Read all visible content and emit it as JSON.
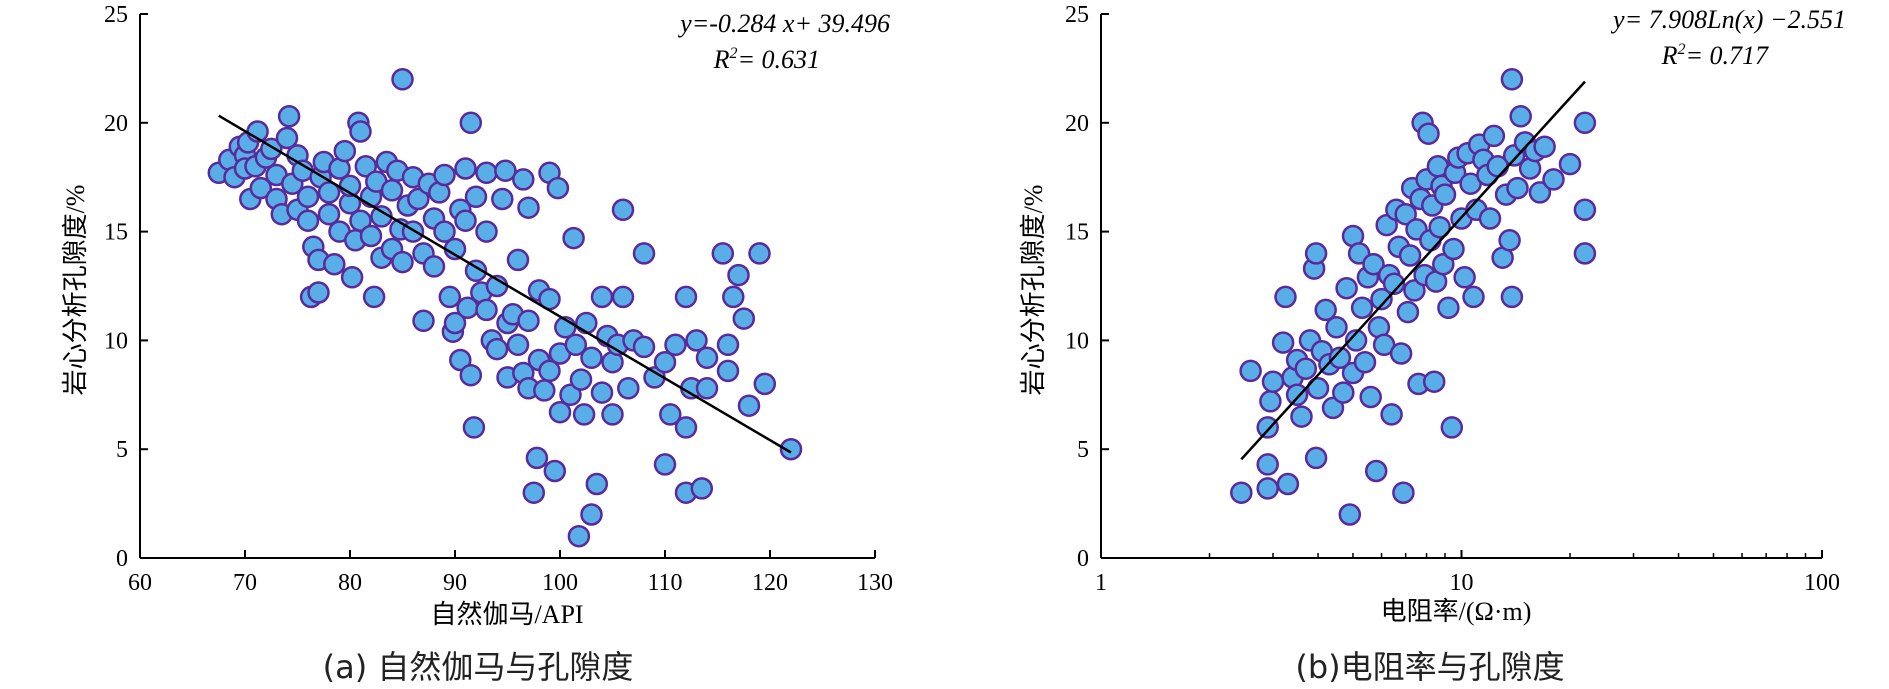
{
  "chart_data": [
    {
      "type": "scatter",
      "panel": "a",
      "caption": "(a) 自然伽马与孔隙度",
      "xlabel": "自然伽马/API",
      "ylabel": "岩心分析孔隙度/%",
      "xlim": [
        60,
        130
      ],
      "ylim": [
        0,
        25
      ],
      "xticks": [
        "60",
        "70",
        "80",
        "90",
        "100",
        "110",
        "120",
        "130"
      ],
      "yticks": [
        "0",
        "5",
        "10",
        "15",
        "20",
        "25"
      ],
      "x_scale": "linear",
      "equation": "y=-0.284 x+ 39.496",
      "r2": "R2= 0.631",
      "trendline": {
        "kind": "linear",
        "slope": -0.284,
        "intercept": 39.496,
        "x_range": [
          67.5,
          122
        ]
      },
      "marker_fill": "#5aaee8",
      "marker_edge": "#5a2a9a",
      "grid": false,
      "points": [
        [
          67.5,
          17.7
        ],
        [
          68.5,
          18.3
        ],
        [
          69,
          17.5
        ],
        [
          69.5,
          18.9
        ],
        [
          70,
          18.5
        ],
        [
          70,
          17.9
        ],
        [
          70.3,
          19.1
        ],
        [
          70.5,
          16.5
        ],
        [
          71,
          18.0
        ],
        [
          71.2,
          19.6
        ],
        [
          71.5,
          17.0
        ],
        [
          72,
          18.4
        ],
        [
          72.5,
          18.8
        ],
        [
          73,
          16.5
        ],
        [
          73,
          17.6
        ],
        [
          73.5,
          15.8
        ],
        [
          74,
          19.3
        ],
        [
          74.2,
          20.3
        ],
        [
          74.5,
          17.2
        ],
        [
          75,
          16.0
        ],
        [
          75,
          18.5
        ],
        [
          75.5,
          17.8
        ],
        [
          76,
          15.5
        ],
        [
          76,
          16.6
        ],
        [
          76.3,
          12.0
        ],
        [
          76.5,
          14.3
        ],
        [
          77,
          12.2
        ],
        [
          77,
          13.7
        ],
        [
          77.2,
          17.5
        ],
        [
          77.5,
          18.2
        ],
        [
          78,
          15.8
        ],
        [
          78,
          16.8
        ],
        [
          78.5,
          13.5
        ],
        [
          79,
          15.0
        ],
        [
          79,
          17.9
        ],
        [
          79.5,
          18.7
        ],
        [
          80,
          16.3
        ],
        [
          80,
          17.1
        ],
        [
          80.2,
          12.9
        ],
        [
          80.5,
          14.6
        ],
        [
          80.8,
          20.0
        ],
        [
          81,
          19.6
        ],
        [
          81,
          15.5
        ],
        [
          81.5,
          18.0
        ],
        [
          82,
          16.6
        ],
        [
          82,
          14.8
        ],
        [
          82.3,
          12.0
        ],
        [
          82.5,
          17.3
        ],
        [
          83,
          13.8
        ],
        [
          83,
          15.7
        ],
        [
          83.5,
          18.2
        ],
        [
          84,
          16.9
        ],
        [
          84,
          14.2
        ],
        [
          84.5,
          17.8
        ],
        [
          84.8,
          15.1
        ],
        [
          85,
          22.0
        ],
        [
          85,
          13.6
        ],
        [
          85.5,
          16.2
        ],
        [
          86,
          17.5
        ],
        [
          86,
          15.0
        ],
        [
          86.5,
          16.5
        ],
        [
          87,
          10.9
        ],
        [
          87,
          14.0
        ],
        [
          87.5,
          17.2
        ],
        [
          88,
          15.6
        ],
        [
          88,
          13.4
        ],
        [
          88.5,
          16.8
        ],
        [
          89,
          15.0
        ],
        [
          89,
          17.6
        ],
        [
          89.5,
          12.0
        ],
        [
          89.8,
          10.4
        ],
        [
          90,
          10.8
        ],
        [
          90,
          14.2
        ],
        [
          90.5,
          16.0
        ],
        [
          90.5,
          9.1
        ],
        [
          91,
          15.5
        ],
        [
          91,
          17.9
        ],
        [
          91.2,
          11.5
        ],
        [
          91.5,
          20.0
        ],
        [
          91.5,
          8.4
        ],
        [
          91.8,
          6.0
        ],
        [
          92,
          13.2
        ],
        [
          92,
          16.6
        ],
        [
          92.5,
          12.2
        ],
        [
          93,
          15.0
        ],
        [
          93,
          17.7
        ],
        [
          93,
          11.4
        ],
        [
          93.5,
          10.0
        ],
        [
          94,
          9.6
        ],
        [
          94,
          12.5
        ],
        [
          94.5,
          16.5
        ],
        [
          94.8,
          17.8
        ],
        [
          95,
          8.3
        ],
        [
          95,
          10.8
        ],
        [
          95.5,
          11.2
        ],
        [
          96,
          13.7
        ],
        [
          96,
          9.8
        ],
        [
          96.5,
          17.4
        ],
        [
          96.5,
          8.5
        ],
        [
          97,
          16.1
        ],
        [
          97,
          7.8
        ],
        [
          97,
          10.9
        ],
        [
          97.5,
          3.0
        ],
        [
          97.8,
          4.6
        ],
        [
          98,
          12.3
        ],
        [
          98,
          9.1
        ],
        [
          98.5,
          7.7
        ],
        [
          99,
          17.7
        ],
        [
          99,
          11.9
        ],
        [
          99,
          8.6
        ],
        [
          99.5,
          4.0
        ],
        [
          99.8,
          17.0
        ],
        [
          100,
          6.7
        ],
        [
          100,
          9.4
        ],
        [
          100.5,
          10.6
        ],
        [
          101,
          7.5
        ],
        [
          101.3,
          14.7
        ],
        [
          101.5,
          9.8
        ],
        [
          101.8,
          1.0
        ],
        [
          102,
          8.2
        ],
        [
          102.3,
          6.6
        ],
        [
          102.5,
          10.8
        ],
        [
          103,
          9.2
        ],
        [
          103,
          2.0
        ],
        [
          103.5,
          3.4
        ],
        [
          104,
          12.0
        ],
        [
          104,
          7.6
        ],
        [
          104.5,
          10.2
        ],
        [
          105,
          6.6
        ],
        [
          105,
          9.0
        ],
        [
          105.5,
          9.8
        ],
        [
          106,
          12.0
        ],
        [
          106,
          16.0
        ],
        [
          106.5,
          7.8
        ],
        [
          107,
          10.0
        ],
        [
          108,
          14.0
        ],
        [
          108,
          9.7
        ],
        [
          109,
          8.3
        ],
        [
          110,
          4.3
        ],
        [
          110,
          9.0
        ],
        [
          110.5,
          6.6
        ],
        [
          111,
          9.8
        ],
        [
          112,
          12.0
        ],
        [
          112,
          3.0
        ],
        [
          112,
          6.0
        ],
        [
          112.5,
          7.8
        ],
        [
          113,
          10.0
        ],
        [
          113.5,
          3.2
        ],
        [
          114,
          9.2
        ],
        [
          114,
          7.8
        ],
        [
          115.5,
          14.0
        ],
        [
          116,
          9.8
        ],
        [
          116,
          8.6
        ],
        [
          116.5,
          12.0
        ],
        [
          117,
          13.0
        ],
        [
          117.5,
          11.0
        ],
        [
          118,
          7.0
        ],
        [
          119,
          14.0
        ],
        [
          119.5,
          8.0
        ],
        [
          122,
          5.0
        ]
      ]
    },
    {
      "type": "scatter",
      "panel": "b",
      "caption": "(b)电阻率与孔隙度",
      "xlabel": "电阻率/(Ω·m)",
      "ylabel": "岩心分析孔隙度/%",
      "xlim": [
        1,
        100
      ],
      "ylim": [
        0,
        25
      ],
      "xticks": [
        "1",
        "10",
        "100"
      ],
      "yticks": [
        "0",
        "5",
        "10",
        "15",
        "20",
        "25"
      ],
      "x_scale": "log",
      "equation": "y= 7.908Ln(x) −2.551",
      "r2": "R2= 0.717",
      "trendline": {
        "kind": "log",
        "a": 7.908,
        "b": -2.551,
        "x_range": [
          2.45,
          22
        ]
      },
      "marker_fill": "#5aaee8",
      "marker_edge": "#5a2a9a",
      "grid": false,
      "points": [
        [
          2.45,
          3.0
        ],
        [
          2.6,
          8.6
        ],
        [
          2.9,
          3.2
        ],
        [
          2.9,
          4.3
        ],
        [
          2.9,
          6.0
        ],
        [
          2.95,
          7.2
        ],
        [
          3.0,
          8.1
        ],
        [
          3.2,
          9.9
        ],
        [
          3.25,
          12.0
        ],
        [
          3.3,
          3.4
        ],
        [
          3.4,
          8.3
        ],
        [
          3.5,
          9.1
        ],
        [
          3.5,
          7.5
        ],
        [
          3.6,
          6.5
        ],
        [
          3.7,
          8.7
        ],
        [
          3.8,
          10.0
        ],
        [
          3.9,
          13.3
        ],
        [
          3.95,
          14.0
        ],
        [
          3.95,
          4.6
        ],
        [
          4.0,
          7.8
        ],
        [
          4.1,
          9.5
        ],
        [
          4.2,
          11.4
        ],
        [
          4.3,
          8.9
        ],
        [
          4.4,
          6.9
        ],
        [
          4.5,
          10.6
        ],
        [
          4.6,
          9.2
        ],
        [
          4.7,
          7.6
        ],
        [
          4.8,
          12.4
        ],
        [
          4.9,
          2.0
        ],
        [
          5.0,
          14.8
        ],
        [
          5.0,
          8.5
        ],
        [
          5.1,
          10.0
        ],
        [
          5.2,
          14.0
        ],
        [
          5.3,
          11.5
        ],
        [
          5.4,
          9.0
        ],
        [
          5.5,
          12.9
        ],
        [
          5.6,
          7.4
        ],
        [
          5.7,
          13.5
        ],
        [
          5.8,
          4.0
        ],
        [
          5.9,
          10.6
        ],
        [
          6.0,
          11.9
        ],
        [
          6.1,
          9.8
        ],
        [
          6.2,
          15.3
        ],
        [
          6.3,
          13.0
        ],
        [
          6.4,
          6.6
        ],
        [
          6.5,
          12.6
        ],
        [
          6.6,
          16.0
        ],
        [
          6.7,
          14.3
        ],
        [
          6.8,
          9.4
        ],
        [
          6.9,
          3.0
        ],
        [
          7.0,
          15.8
        ],
        [
          7.1,
          11.3
        ],
        [
          7.2,
          13.9
        ],
        [
          7.3,
          17.0
        ],
        [
          7.4,
          12.3
        ],
        [
          7.5,
          15.1
        ],
        [
          7.6,
          8.0
        ],
        [
          7.7,
          16.5
        ],
        [
          7.8,
          20.0
        ],
        [
          7.9,
          13.0
        ],
        [
          8.0,
          17.4
        ],
        [
          8.1,
          19.5
        ],
        [
          8.2,
          14.6
        ],
        [
          8.3,
          16.2
        ],
        [
          8.4,
          8.1
        ],
        [
          8.5,
          12.7
        ],
        [
          8.6,
          18.0
        ],
        [
          8.7,
          15.2
        ],
        [
          8.8,
          17.1
        ],
        [
          8.9,
          13.5
        ],
        [
          9.0,
          16.7
        ],
        [
          9.2,
          11.5
        ],
        [
          9.4,
          6.0
        ],
        [
          9.5,
          14.2
        ],
        [
          9.6,
          17.7
        ],
        [
          9.8,
          18.4
        ],
        [
          10.0,
          15.6
        ],
        [
          10.2,
          12.9
        ],
        [
          10.4,
          18.6
        ],
        [
          10.6,
          17.2
        ],
        [
          10.8,
          12.0
        ],
        [
          11.0,
          16.0
        ],
        [
          11.2,
          19.0
        ],
        [
          11.5,
          18.3
        ],
        [
          11.8,
          17.6
        ],
        [
          12.0,
          15.6
        ],
        [
          12.3,
          19.4
        ],
        [
          12.6,
          18.0
        ],
        [
          13.0,
          13.8
        ],
        [
          13.3,
          16.7
        ],
        [
          13.6,
          14.6
        ],
        [
          13.8,
          22.0
        ],
        [
          13.8,
          12.0
        ],
        [
          14.0,
          18.5
        ],
        [
          14.3,
          17.0
        ],
        [
          14.6,
          20.3
        ],
        [
          15.0,
          19.1
        ],
        [
          15.5,
          17.9
        ],
        [
          16.0,
          18.7
        ],
        [
          16.5,
          16.8
        ],
        [
          17.0,
          18.9
        ],
        [
          18.0,
          17.4
        ],
        [
          20.0,
          18.1
        ],
        [
          22.0,
          20.0
        ],
        [
          22.0,
          16.0
        ],
        [
          22.0,
          14.0
        ]
      ]
    }
  ]
}
